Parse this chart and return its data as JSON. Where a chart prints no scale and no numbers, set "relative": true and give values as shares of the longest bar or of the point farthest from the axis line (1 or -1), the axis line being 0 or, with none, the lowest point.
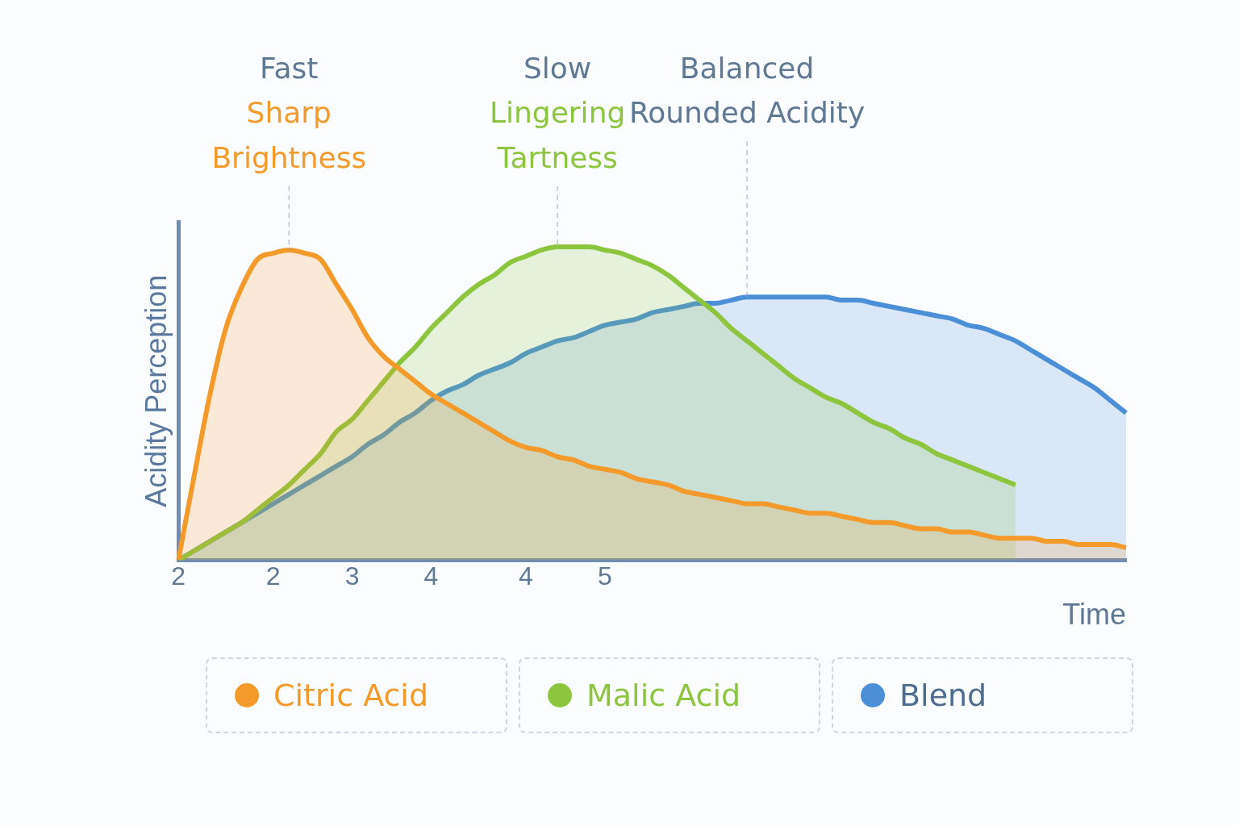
{
  "chart_data": {
    "type": "area",
    "relative": true,
    "xlabel": "Time",
    "ylabel": "Acidity Perception",
    "categories": [
      "2",
      null,
      null,
      null,
      null,
      null,
      "2",
      null,
      null,
      null,
      null,
      "3",
      null,
      null,
      null,
      null,
      "4",
      null,
      null,
      null,
      null,
      null,
      "4",
      null,
      null,
      null,
      null,
      "5",
      null,
      null,
      null,
      null,
      null,
      null,
      null,
      null,
      null,
      null,
      null,
      null,
      null,
      null,
      null,
      null,
      null,
      null,
      null,
      null,
      null,
      null,
      null,
      null,
      null,
      null,
      null,
      null,
      null,
      null,
      null,
      null,
      null
    ],
    "annotations": [
      "Fast",
      "Sharp\nBrightness",
      "Slow",
      "Lingering\nTartness",
      "Balanced",
      "Rounded Acidity"
    ],
    "legend": "bottom",
    "series": [
      {
        "name": "Citric Acid",
        "color": "#f39a2b",
        "values": [
          0,
          0.27,
          0.53,
          0.74,
          0.87,
          0.96,
          0.98,
          0.99,
          0.98,
          0.96,
          0.88,
          0.8,
          0.71,
          0.65,
          0.61,
          0.57,
          0.53,
          0.5,
          0.47,
          0.44,
          0.41,
          0.38,
          0.36,
          0.35,
          0.33,
          0.32,
          0.3,
          0.29,
          0.28,
          0.26,
          0.25,
          0.24,
          0.22,
          0.21,
          0.2,
          0.19,
          0.18,
          0.18,
          0.17,
          0.16,
          0.15,
          0.15,
          0.14,
          0.13,
          0.12,
          0.12,
          0.11,
          0.1,
          0.1,
          0.09,
          0.09,
          0.08,
          0.07,
          0.07,
          0.07,
          0.06,
          0.06,
          0.05,
          0.05,
          0.05,
          0.04
        ]
      },
      {
        "name": "Malic Acid",
        "color": "#8cc63f",
        "values": [
          0,
          0.03,
          0.06,
          0.09,
          0.12,
          0.16,
          0.2,
          0.24,
          0.29,
          0.34,
          0.41,
          0.45,
          0.51,
          0.57,
          0.63,
          0.68,
          0.74,
          0.79,
          0.84,
          0.88,
          0.91,
          0.95,
          0.97,
          0.99,
          1,
          1,
          1,
          0.99,
          0.98,
          0.96,
          0.94,
          0.91,
          0.87,
          0.83,
          0.79,
          0.74,
          0.7,
          0.66,
          0.62,
          0.58,
          0.55,
          0.52,
          0.5,
          0.47,
          0.44,
          0.42,
          0.39,
          0.37,
          0.34,
          0.32,
          0.3,
          0.28,
          0.26,
          0.24,
          null,
          null,
          null,
          null,
          null,
          null,
          null
        ]
      },
      {
        "name": "Blend",
        "color": "#4a8fd8",
        "values": [
          0,
          0.03,
          0.06,
          0.09,
          0.12,
          0.15,
          0.18,
          0.21,
          0.24,
          0.27,
          0.3,
          0.33,
          0.37,
          0.4,
          0.44,
          0.47,
          0.51,
          0.54,
          0.56,
          0.59,
          0.61,
          0.63,
          0.66,
          0.68,
          0.7,
          0.71,
          0.73,
          0.75,
          0.76,
          0.77,
          0.79,
          0.8,
          0.81,
          0.82,
          0.82,
          0.83,
          0.84,
          0.84,
          0.84,
          0.84,
          0.84,
          0.84,
          0.83,
          0.83,
          0.82,
          0.81,
          0.8,
          0.79,
          0.78,
          0.77,
          0.75,
          0.74,
          0.72,
          0.7,
          0.67,
          0.64,
          0.61,
          0.58,
          0.55,
          0.51,
          0.47
        ]
      }
    ]
  }
}
